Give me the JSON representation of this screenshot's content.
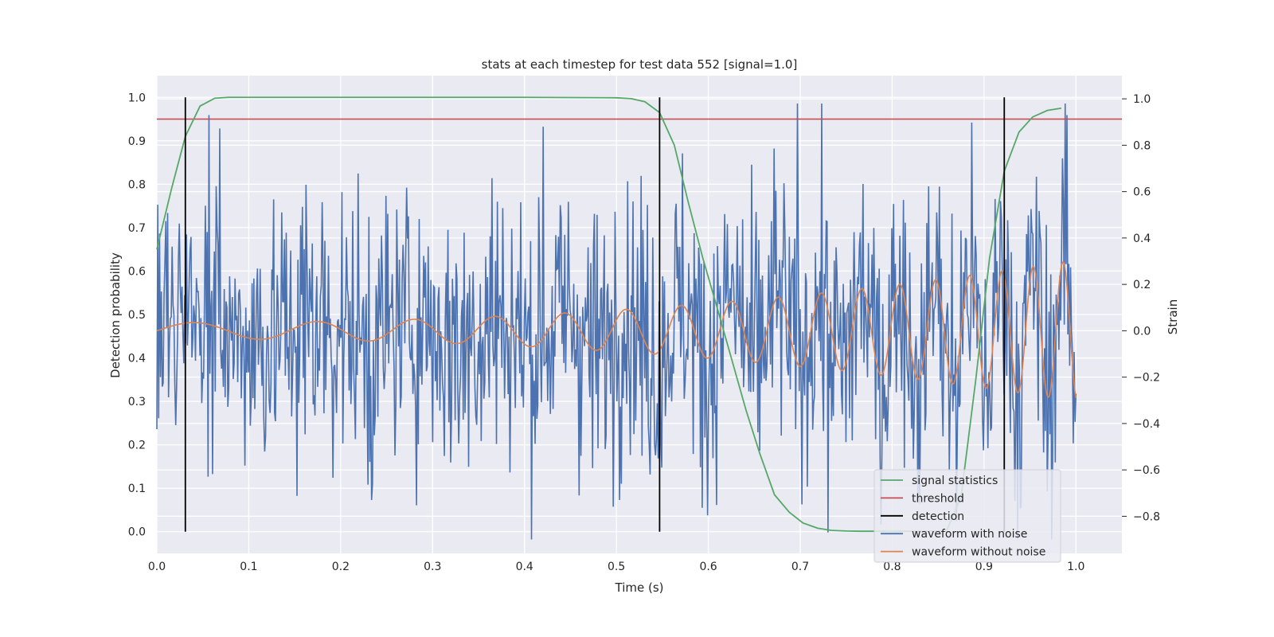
{
  "chart_data": {
    "type": "line",
    "title": "stats at each timestep for test data 552 [signal=1.0]",
    "xlabel": "Time (s)",
    "ylabel": "Detection probability",
    "ylabel_right": "Strain",
    "xlim": [
      0.0,
      1.05
    ],
    "ylim": [
      -0.05,
      1.05
    ],
    "ylim_right": [
      -0.96,
      1.1
    ],
    "x_ticks": [
      "0.0",
      "0.1",
      "0.2",
      "0.3",
      "0.4",
      "0.5",
      "0.6",
      "0.7",
      "0.8",
      "0.9",
      "1.0"
    ],
    "y_ticks": [
      "0.0",
      "0.1",
      "0.2",
      "0.3",
      "0.4",
      "0.5",
      "0.6",
      "0.7",
      "0.8",
      "0.9",
      "1.0"
    ],
    "y_ticks_right": [
      "−0.8",
      "−0.6",
      "−0.4",
      "−0.2",
      "0.0",
      "0.2",
      "0.4",
      "0.6",
      "0.8",
      "1.0"
    ],
    "grid": true,
    "legend_position": "lower-right",
    "colors": {
      "signal": "#55a868",
      "threshold": "#c44e52",
      "detection": "#000000",
      "noisy": "#4c72b0",
      "clean": "#dd8452",
      "plot_bg": "#eaeaf2",
      "grid": "#ffffff"
    },
    "series": [
      {
        "name": "signal statistics",
        "axis": "left",
        "x": [
          0.0,
          0.016,
          0.031,
          0.047,
          0.063,
          0.078,
          0.094,
          0.11,
          0.2,
          0.3,
          0.4,
          0.5,
          0.516,
          0.531,
          0.547,
          0.563,
          0.578,
          0.594,
          0.609,
          0.625,
          0.641,
          0.656,
          0.672,
          0.688,
          0.703,
          0.719,
          0.734,
          0.75,
          0.766,
          0.781,
          0.797,
          0.813,
          0.828,
          0.844,
          0.859,
          0.875,
          0.891,
          0.906,
          0.922,
          0.938,
          0.953,
          0.969,
          0.984
        ],
        "y": [
          0.65,
          0.79,
          0.91,
          0.98,
          0.998,
          1.0,
          1.0,
          1.0,
          1.0,
          1.0,
          1.0,
          0.999,
          0.997,
          0.99,
          0.965,
          0.89,
          0.76,
          0.63,
          0.52,
          0.4,
          0.28,
          0.18,
          0.085,
          0.045,
          0.02,
          0.008,
          0.003,
          0.0015,
          0.001,
          0.001,
          0.001,
          0.001,
          0.001,
          0.001,
          0.001,
          0.08,
          0.35,
          0.63,
          0.83,
          0.92,
          0.955,
          0.97,
          0.975
        ]
      },
      {
        "name": "threshold",
        "axis": "left",
        "y": 0.95
      },
      {
        "name": "detection",
        "axis": "left",
        "x": [
          0.031,
          0.547,
          0.922
        ],
        "y_range": [
          0.0,
          1.0
        ]
      },
      {
        "name": "waveform with noise",
        "axis": "right",
        "x_range": [
          0.0,
          1.0
        ],
        "std": 0.3,
        "spikes": [
          [
            0.057,
            0.93
          ],
          [
            0.234,
            -0.73
          ],
          [
            0.42,
            0.88
          ],
          [
            0.697,
            1.01
          ],
          [
            0.73,
            -0.87
          ],
          [
            0.87,
            -0.82
          ],
          [
            0.99,
            0.93
          ]
        ]
      },
      {
        "name": "waveform without noise",
        "axis": "right",
        "x_range": [
          0.0,
          1.0
        ],
        "description_note": ""
      }
    ],
    "legend": [
      "signal statistics",
      "threshold",
      "detection",
      "waveform with noise",
      "waveform without noise"
    ]
  }
}
